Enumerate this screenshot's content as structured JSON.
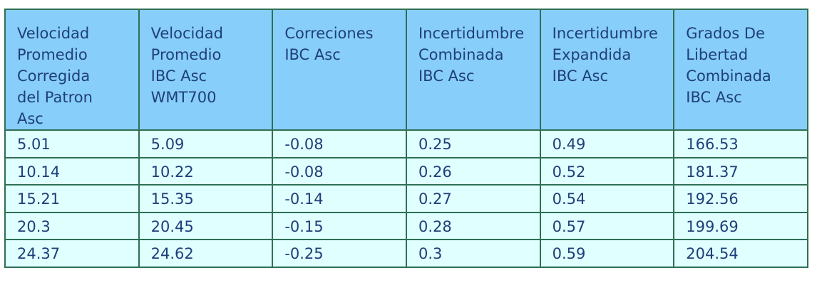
{
  "table": {
    "headers": [
      "Velocidad\nPromedio\nCorregida\ndel Patron\nAsc",
      "Velocidad\nPromedio\nIBC Asc\nWMT700",
      "Correciones\nIBC Asc",
      "Incertidumbre\nCombinada\nIBC Asc",
      "Incertidumbre\nExpandida\nIBC Asc",
      "Grados De\nLibertad\nCombinada\nIBC Asc"
    ],
    "rows": [
      [
        "5.01",
        "5.09",
        "-0.08",
        "0.25",
        "0.49",
        "166.53"
      ],
      [
        "10.14",
        "10.22",
        "-0.08",
        "0.26",
        "0.52",
        "181.37"
      ],
      [
        "15.21",
        "15.35",
        "-0.14",
        "0.27",
        "0.54",
        "192.56"
      ],
      [
        "20.3",
        "20.45",
        "-0.15",
        "0.28",
        "0.57",
        "199.69"
      ],
      [
        "24.37",
        "24.62",
        "-0.25",
        "0.3",
        "0.59",
        "204.54"
      ]
    ]
  }
}
